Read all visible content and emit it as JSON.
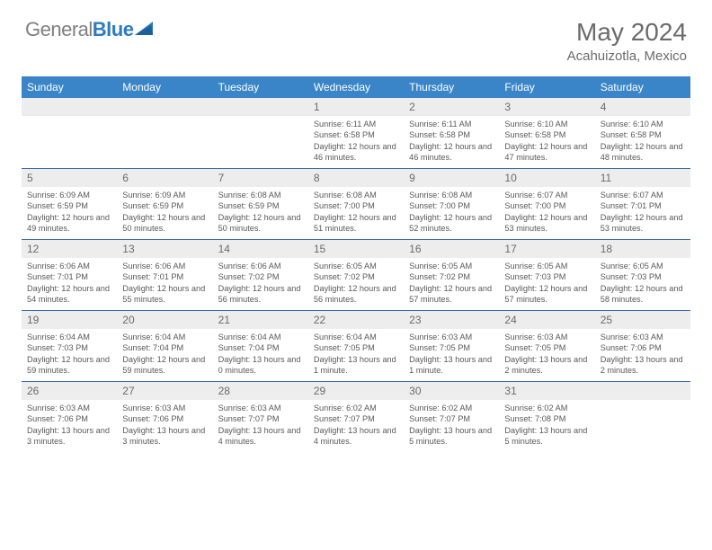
{
  "logo": {
    "part1": "General",
    "part2": "Blue"
  },
  "title": "May 2024",
  "location": "Acahuizotla, Mexico",
  "colors": {
    "header_bg": "#3a85c8",
    "daynum_bg": "#ededed",
    "text": "#595959",
    "row_border": "#3a6ea5",
    "logo_blue": "#2e7bc0"
  },
  "weekdays": [
    "Sunday",
    "Monday",
    "Tuesday",
    "Wednesday",
    "Thursday",
    "Friday",
    "Saturday"
  ],
  "weeks": [
    [
      {
        "n": "",
        "empty": true
      },
      {
        "n": "",
        "empty": true
      },
      {
        "n": "",
        "empty": true
      },
      {
        "n": "1",
        "sunrise": "6:11 AM",
        "sunset": "6:58 PM",
        "daylight": "12 hours and 46 minutes."
      },
      {
        "n": "2",
        "sunrise": "6:11 AM",
        "sunset": "6:58 PM",
        "daylight": "12 hours and 46 minutes."
      },
      {
        "n": "3",
        "sunrise": "6:10 AM",
        "sunset": "6:58 PM",
        "daylight": "12 hours and 47 minutes."
      },
      {
        "n": "4",
        "sunrise": "6:10 AM",
        "sunset": "6:58 PM",
        "daylight": "12 hours and 48 minutes."
      }
    ],
    [
      {
        "n": "5",
        "sunrise": "6:09 AM",
        "sunset": "6:59 PM",
        "daylight": "12 hours and 49 minutes."
      },
      {
        "n": "6",
        "sunrise": "6:09 AM",
        "sunset": "6:59 PM",
        "daylight": "12 hours and 50 minutes."
      },
      {
        "n": "7",
        "sunrise": "6:08 AM",
        "sunset": "6:59 PM",
        "daylight": "12 hours and 50 minutes."
      },
      {
        "n": "8",
        "sunrise": "6:08 AM",
        "sunset": "7:00 PM",
        "daylight": "12 hours and 51 minutes."
      },
      {
        "n": "9",
        "sunrise": "6:08 AM",
        "sunset": "7:00 PM",
        "daylight": "12 hours and 52 minutes."
      },
      {
        "n": "10",
        "sunrise": "6:07 AM",
        "sunset": "7:00 PM",
        "daylight": "12 hours and 53 minutes."
      },
      {
        "n": "11",
        "sunrise": "6:07 AM",
        "sunset": "7:01 PM",
        "daylight": "12 hours and 53 minutes."
      }
    ],
    [
      {
        "n": "12",
        "sunrise": "6:06 AM",
        "sunset": "7:01 PM",
        "daylight": "12 hours and 54 minutes."
      },
      {
        "n": "13",
        "sunrise": "6:06 AM",
        "sunset": "7:01 PM",
        "daylight": "12 hours and 55 minutes."
      },
      {
        "n": "14",
        "sunrise": "6:06 AM",
        "sunset": "7:02 PM",
        "daylight": "12 hours and 56 minutes."
      },
      {
        "n": "15",
        "sunrise": "6:05 AM",
        "sunset": "7:02 PM",
        "daylight": "12 hours and 56 minutes."
      },
      {
        "n": "16",
        "sunrise": "6:05 AM",
        "sunset": "7:02 PM",
        "daylight": "12 hours and 57 minutes."
      },
      {
        "n": "17",
        "sunrise": "6:05 AM",
        "sunset": "7:03 PM",
        "daylight": "12 hours and 57 minutes."
      },
      {
        "n": "18",
        "sunrise": "6:05 AM",
        "sunset": "7:03 PM",
        "daylight": "12 hours and 58 minutes."
      }
    ],
    [
      {
        "n": "19",
        "sunrise": "6:04 AM",
        "sunset": "7:03 PM",
        "daylight": "12 hours and 59 minutes."
      },
      {
        "n": "20",
        "sunrise": "6:04 AM",
        "sunset": "7:04 PM",
        "daylight": "12 hours and 59 minutes."
      },
      {
        "n": "21",
        "sunrise": "6:04 AM",
        "sunset": "7:04 PM",
        "daylight": "13 hours and 0 minutes."
      },
      {
        "n": "22",
        "sunrise": "6:04 AM",
        "sunset": "7:05 PM",
        "daylight": "13 hours and 1 minute."
      },
      {
        "n": "23",
        "sunrise": "6:03 AM",
        "sunset": "7:05 PM",
        "daylight": "13 hours and 1 minute."
      },
      {
        "n": "24",
        "sunrise": "6:03 AM",
        "sunset": "7:05 PM",
        "daylight": "13 hours and 2 minutes."
      },
      {
        "n": "25",
        "sunrise": "6:03 AM",
        "sunset": "7:06 PM",
        "daylight": "13 hours and 2 minutes."
      }
    ],
    [
      {
        "n": "26",
        "sunrise": "6:03 AM",
        "sunset": "7:06 PM",
        "daylight": "13 hours and 3 minutes."
      },
      {
        "n": "27",
        "sunrise": "6:03 AM",
        "sunset": "7:06 PM",
        "daylight": "13 hours and 3 minutes."
      },
      {
        "n": "28",
        "sunrise": "6:03 AM",
        "sunset": "7:07 PM",
        "daylight": "13 hours and 4 minutes."
      },
      {
        "n": "29",
        "sunrise": "6:02 AM",
        "sunset": "7:07 PM",
        "daylight": "13 hours and 4 minutes."
      },
      {
        "n": "30",
        "sunrise": "6:02 AM",
        "sunset": "7:07 PM",
        "daylight": "13 hours and 5 minutes."
      },
      {
        "n": "31",
        "sunrise": "6:02 AM",
        "sunset": "7:08 PM",
        "daylight": "13 hours and 5 minutes."
      },
      {
        "n": "",
        "empty": true
      }
    ]
  ],
  "labels": {
    "sunrise": "Sunrise:",
    "sunset": "Sunset:",
    "daylight": "Daylight:"
  }
}
